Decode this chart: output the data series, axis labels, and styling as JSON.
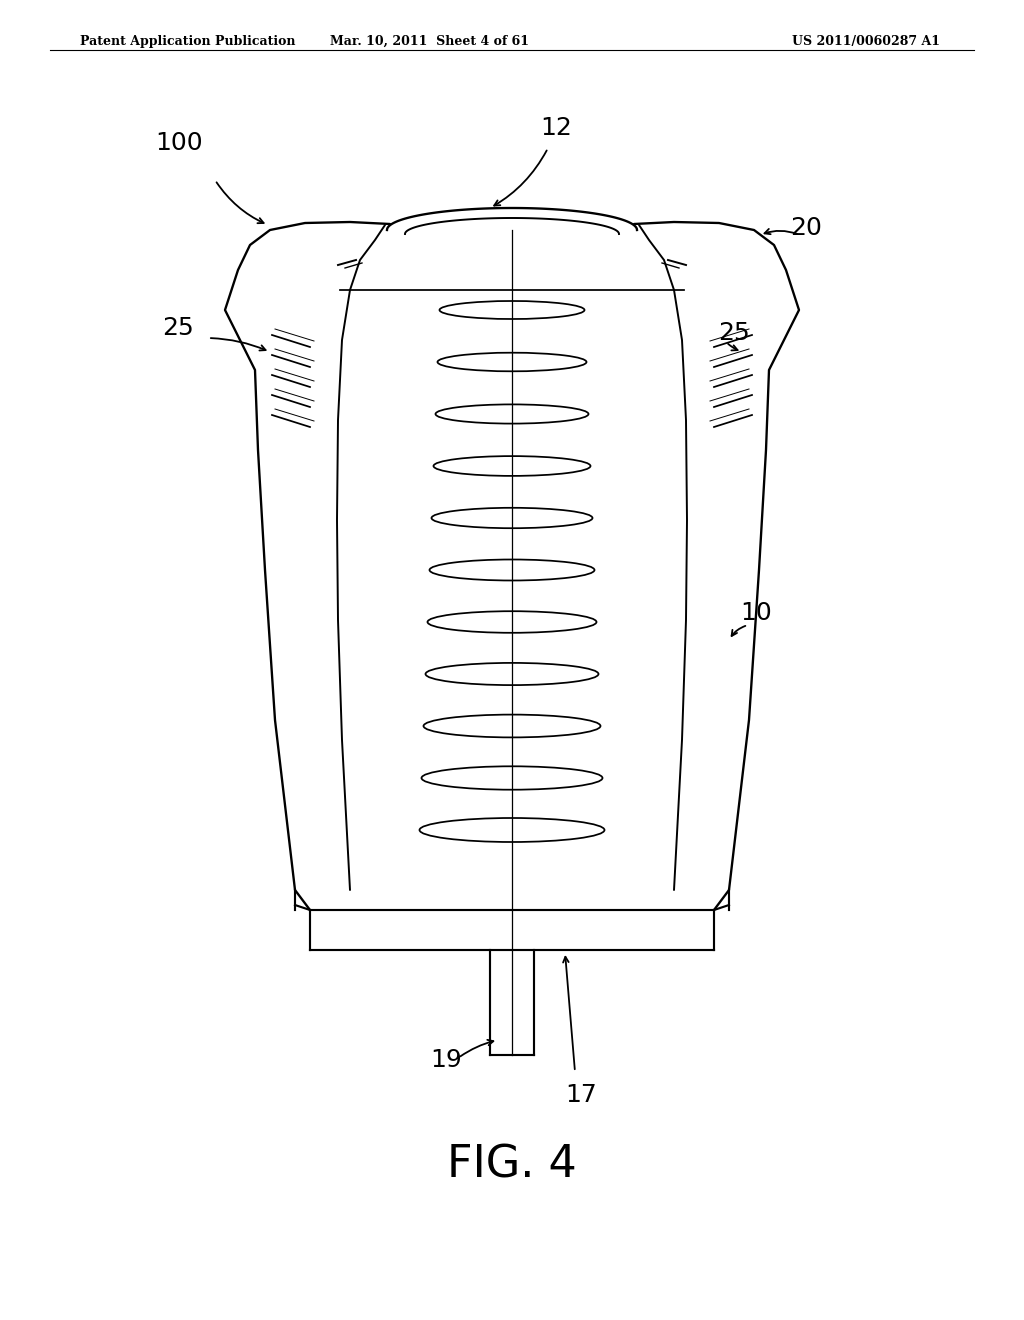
{
  "bg_color": "#ffffff",
  "header_left": "Patent Application Publication",
  "header_mid": "Mar. 10, 2011  Sheet 4 of 61",
  "header_right": "US 2011/0060287 A1",
  "fig_label": "FIG. 4",
  "line_color": "#000000",
  "line_width": 1.4
}
